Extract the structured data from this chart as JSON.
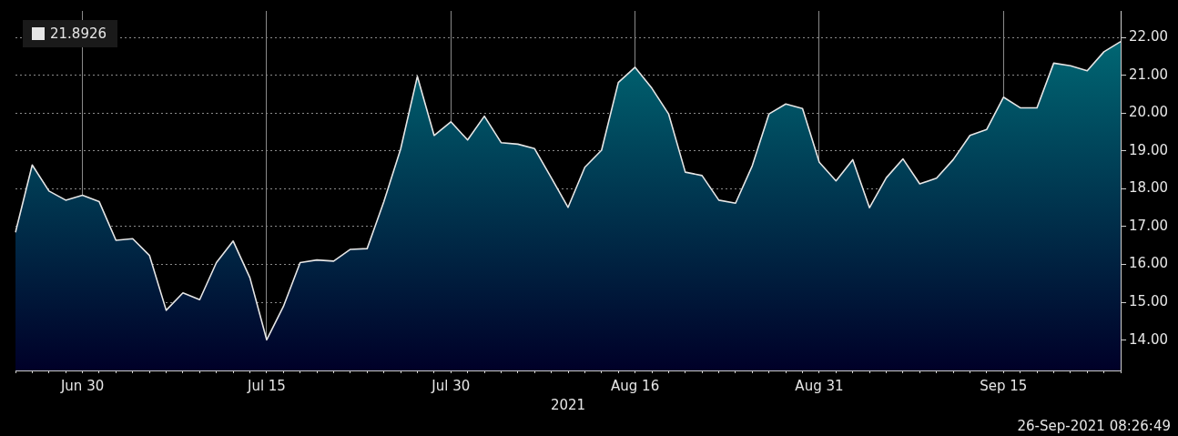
{
  "chart_data": {
    "type": "area",
    "xlabel": "2021",
    "categories": [
      null,
      null,
      null,
      null,
      "Jun 30",
      null,
      null,
      null,
      null,
      null,
      null,
      null,
      null,
      null,
      null,
      "Jul 15",
      null,
      null,
      null,
      null,
      null,
      null,
      null,
      null,
      null,
      null,
      "Jul 30",
      null,
      null,
      null,
      null,
      null,
      null,
      null,
      null,
      null,
      null,
      "Aug 16",
      null,
      null,
      null,
      null,
      null,
      null,
      null,
      null,
      null,
      null,
      "Aug 31",
      null,
      null,
      null,
      null,
      null,
      null,
      null,
      null,
      null,
      null,
      "Sep 15",
      null,
      null,
      null,
      null,
      null,
      null,
      null
    ],
    "series": [
      {
        "name": "21.8926",
        "color": "#e6e6e6",
        "values": [
          16.85,
          18.63,
          17.94,
          17.7,
          17.83,
          17.66,
          16.64,
          16.68,
          16.24,
          14.79,
          15.25,
          15.07,
          16.05,
          16.62,
          15.65,
          14.01,
          14.89,
          16.05,
          16.12,
          16.09,
          16.4,
          16.42,
          17.66,
          19.05,
          20.97,
          19.41,
          19.77,
          19.29,
          19.92,
          19.22,
          19.18,
          19.06,
          18.29,
          17.51,
          18.57,
          19.02,
          20.81,
          21.21,
          20.66,
          19.98,
          18.44,
          18.35,
          17.7,
          17.62,
          18.61,
          19.98,
          20.24,
          20.12,
          18.7,
          18.21,
          18.77,
          17.5,
          18.29,
          18.79,
          18.13,
          18.28,
          18.77,
          19.41,
          19.57,
          20.42,
          20.14,
          20.14,
          21.32,
          21.25,
          21.12,
          21.62,
          21.89
        ]
      }
    ],
    "ylim": [
      13.2,
      22.7
    ],
    "yticks": [
      {
        "value": 14,
        "label": "14.00"
      },
      {
        "value": 15,
        "label": "15.00"
      },
      {
        "value": 16,
        "label": "16.00"
      },
      {
        "value": 17,
        "label": "17.00"
      },
      {
        "value": 18,
        "label": "18.00"
      },
      {
        "value": 19,
        "label": "19.00"
      },
      {
        "value": 20,
        "label": "20.00"
      },
      {
        "value": 21,
        "label": "21.00"
      },
      {
        "value": 22,
        "label": "22.00"
      }
    ],
    "grid": true,
    "legend": "top left",
    "line_style": "solid",
    "marker": "none",
    "annotations": [
      "26-Sep-2021 08:26:49"
    ]
  }
}
